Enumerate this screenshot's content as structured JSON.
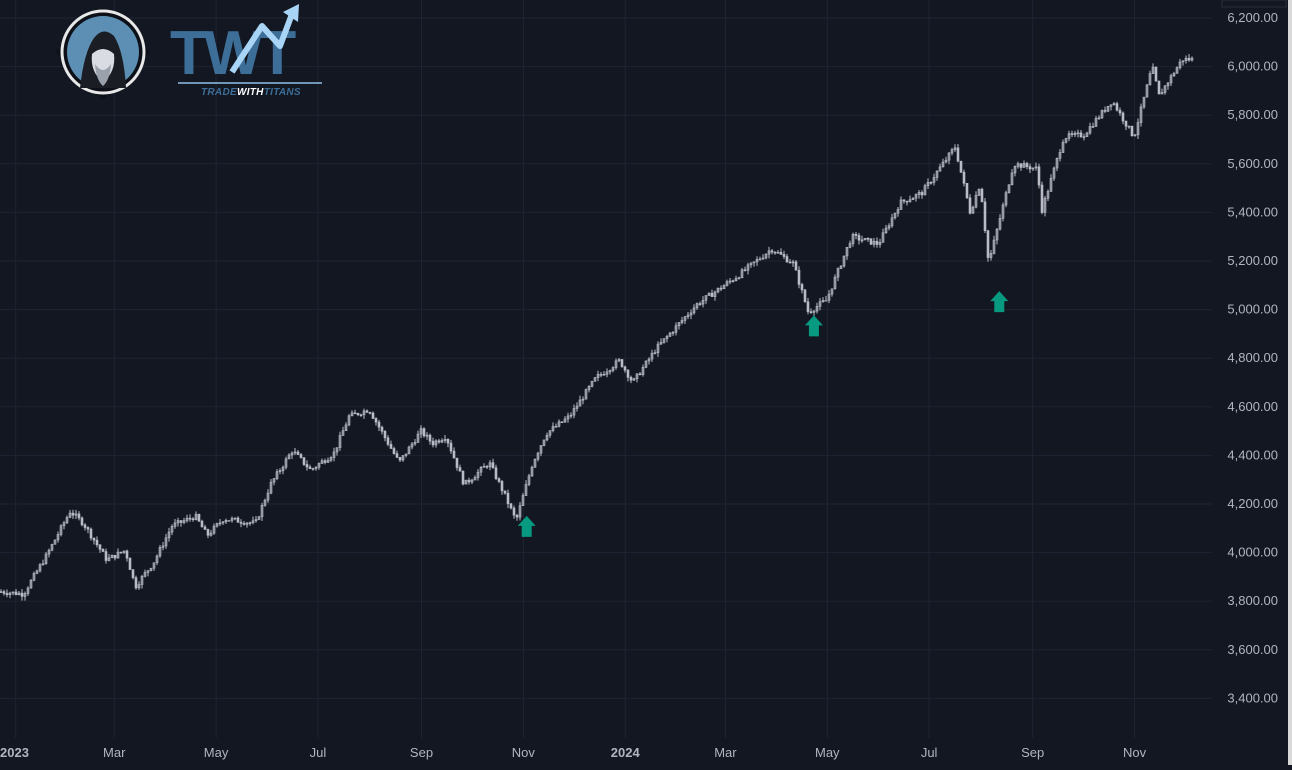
{
  "logo": {
    "brand": "TWT",
    "tagline_a": "TRADE",
    "tagline_b": "WITH",
    "tagline_c": "TITANS"
  },
  "colors": {
    "background": "#131722",
    "grid": "#1f2433",
    "candle": "#b9bcc6",
    "axis_text": "#b2b5be",
    "arrow": "#089981"
  },
  "chart_data": {
    "type": "candlestick",
    "x_axis": [
      "2023",
      "Mar",
      "May",
      "Jul",
      "Sep",
      "Nov",
      "2024",
      "Mar",
      "May",
      "Jul",
      "Sep",
      "Nov"
    ],
    "x_axis_bold": [
      "2023",
      "2024"
    ],
    "y_ticks": [
      "6,200.00",
      "6,000.00",
      "5,800.00",
      "5,600.00",
      "5,400.00",
      "5,200.00",
      "5,000.00",
      "4,800.00",
      "4,600.00",
      "4,400.00",
      "4,200.00",
      "4,000.00",
      "3,800.00",
      "3,600.00",
      "3,400.00"
    ],
    "ylim": [
      3300,
      6250
    ],
    "grid": true,
    "price_path": [
      [
        "2022-12-22",
        3840
      ],
      [
        "2023-01-05",
        3830
      ],
      [
        "2023-01-19",
        3990
      ],
      [
        "2023-02-02",
        4170
      ],
      [
        "2023-02-10",
        4120
      ],
      [
        "2023-02-24",
        3970
      ],
      [
        "2023-03-07",
        4010
      ],
      [
        "2023-03-13",
        3860
      ],
      [
        "2023-03-24",
        3960
      ],
      [
        "2023-04-04",
        4110
      ],
      [
        "2023-04-18",
        4150
      ],
      [
        "2023-04-25",
        4070
      ],
      [
        "2023-05-05",
        4140
      ],
      [
        "2023-05-24",
        4120
      ],
      [
        "2023-06-02",
        4280
      ],
      [
        "2023-06-15",
        4420
      ],
      [
        "2023-06-26",
        4340
      ],
      [
        "2023-07-10",
        4410
      ],
      [
        "2023-07-19",
        4560
      ],
      [
        "2023-07-31",
        4590
      ],
      [
        "2023-08-09",
        4480
      ],
      [
        "2023-08-18",
        4370
      ],
      [
        "2023-08-31",
        4500
      ],
      [
        "2023-09-07",
        4450
      ],
      [
        "2023-09-15",
        4480
      ],
      [
        "2023-09-26",
        4280
      ],
      [
        "2023-10-11",
        4370
      ],
      [
        "2023-10-20",
        4240
      ],
      [
        "2023-10-27",
        4130
      ],
      [
        "2023-11-06",
        4370
      ],
      [
        "2023-11-14",
        4490
      ],
      [
        "2023-11-28",
        4560
      ],
      [
        "2023-12-14",
        4720
      ],
      [
        "2023-12-28",
        4790
      ],
      [
        "2024-01-05",
        4700
      ],
      [
        "2024-01-19",
        4840
      ],
      [
        "2024-02-12",
        5020
      ],
      [
        "2024-03-08",
        5140
      ],
      [
        "2024-03-28",
        5250
      ],
      [
        "2024-04-10",
        5190
      ],
      [
        "2024-04-19",
        4990
      ],
      [
        "2024-04-30",
        5040
      ],
      [
        "2024-05-15",
        5300
      ],
      [
        "2024-05-31",
        5270
      ],
      [
        "2024-06-13",
        5440
      ],
      [
        "2024-06-26",
        5480
      ],
      [
        "2024-07-16",
        5670
      ],
      [
        "2024-07-25",
        5400
      ],
      [
        "2024-07-31",
        5520
      ],
      [
        "2024-08-05",
        5190
      ],
      [
        "2024-08-20",
        5600
      ],
      [
        "2024-09-03",
        5580
      ],
      [
        "2024-09-06",
        5410
      ],
      [
        "2024-09-19",
        5710
      ],
      [
        "2024-10-01",
        5720
      ],
      [
        "2024-10-18",
        5860
      ],
      [
        "2024-10-31",
        5710
      ],
      [
        "2024-11-11",
        6000
      ],
      [
        "2024-11-15",
        5880
      ],
      [
        "2024-11-29",
        6030
      ]
    ],
    "annotations": [
      {
        "type": "up-arrow",
        "date": "2023-11-03",
        "value": 4110
      },
      {
        "type": "up-arrow",
        "date": "2024-04-23",
        "value": 4935
      },
      {
        "type": "up-arrow",
        "date": "2024-08-12",
        "value": 5035
      }
    ]
  }
}
